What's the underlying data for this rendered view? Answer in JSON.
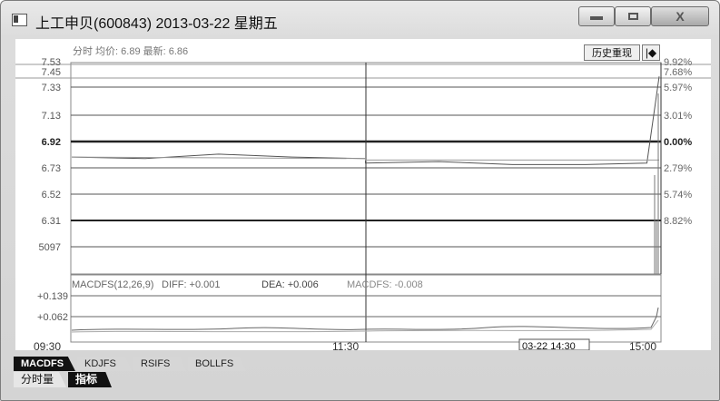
{
  "window": {
    "title": "上工申贝(600843) 2013-03-22 星期五",
    "close_label": "X"
  },
  "chart": {
    "header_text": "分时 均价: 6.89 最新: 6.86",
    "history_button": "历史重现",
    "history_arrow": "|◆",
    "price_ticks": [
      "7.53",
      "7.45",
      "7.33",
      "7.13",
      "6.92",
      "6.73",
      "6.52",
      "6.31"
    ],
    "pct_ticks": [
      "9.92%",
      "7.68%",
      "5.97%",
      "3.01%",
      "0.00%",
      "2.79%",
      "5.74%",
      "8.82%"
    ],
    "volume_tick": "5097",
    "macd_legend": {
      "label": "MACDFS(12,26,9)",
      "diff": "DIFF: +0.001",
      "dea": "DEA: +0.006",
      "macd": "MACDFS: -0.008"
    },
    "macd_ticks": [
      "+0.139",
      "+0.062"
    ],
    "time_labels": [
      "09:30",
      "11:30",
      "15:00"
    ],
    "cursor_time": "03-22 14:30"
  },
  "chart_data": {
    "type": "line",
    "title": "上工申贝(600843) 2013-03-22 星期五",
    "xlabel": "",
    "ylabel": "",
    "x_range": [
      "09:30",
      "15:00"
    ],
    "ylim": [
      6.31,
      7.53
    ],
    "reference_price": 6.92,
    "series": [
      {
        "name": "分时",
        "x": [
          "09:30",
          "10:00",
          "10:30",
          "11:00",
          "11:30",
          "13:00",
          "13:30",
          "14:00",
          "14:30",
          "14:55",
          "15:00"
        ],
        "values": [
          6.91,
          6.9,
          6.93,
          6.91,
          6.9,
          6.87,
          6.88,
          6.86,
          6.86,
          6.87,
          7.45
        ]
      },
      {
        "name": "均价",
        "x": [
          "09:30",
          "11:30",
          "13:00",
          "15:00"
        ],
        "values": [
          6.91,
          6.9,
          6.89,
          6.89
        ]
      }
    ]
  },
  "tabs": {
    "indicator_tabs": [
      "MACDFS",
      "KDJFS",
      "RSIFS",
      "BOLLFS"
    ],
    "bottom_tabs": [
      "分时量",
      "指标"
    ]
  },
  "colors": {
    "line": "#555555",
    "grid": "#333333",
    "background": "#ffffff"
  }
}
